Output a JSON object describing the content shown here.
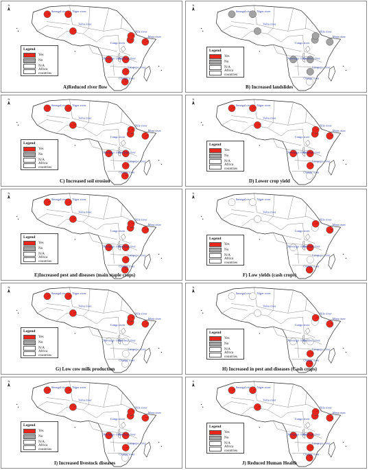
{
  "legend": {
    "title": "Legend",
    "yes": "Yes",
    "no": "No",
    "na": "N/A",
    "countries": "Africa countries"
  },
  "colors": {
    "yes": "#e8261c",
    "no": "#a3a3a3",
    "na": "#ffffff",
    "river": "#2438a8"
  },
  "rivers": [
    "Senegal river",
    "Niger river",
    "Volta river",
    "Congo river",
    "Nile river",
    "Mara river",
    "Okavango river",
    "Zambezi river",
    "Limpopo river",
    "Orange river"
  ],
  "panels": [
    {
      "caption": "A)Reduced  river flow",
      "status": [
        "yes",
        "yes",
        "yes",
        "yes",
        "yes",
        "yes",
        "yes",
        "yes",
        "yes",
        "yes"
      ]
    },
    {
      "caption": "B) Increased landslides",
      "status": [
        "no",
        "no",
        "no",
        "no",
        "no",
        "no",
        "no",
        "no",
        "no",
        "na"
      ]
    },
    {
      "caption": "C) Increased soil erosion",
      "status": [
        "yes",
        "yes",
        "yes",
        "yes",
        "yes",
        "yes",
        "yes",
        "yes",
        "yes",
        "yes"
      ]
    },
    {
      "caption": "D) Lower crop yield",
      "status": [
        "yes",
        "yes",
        "yes",
        "yes",
        "yes",
        "yes",
        "yes",
        "yes",
        "yes",
        "na"
      ]
    },
    {
      "caption": "E)Increased pest and diseases (main staple crops)",
      "status": [
        "yes",
        "yes",
        "yes",
        "yes",
        "yes",
        "yes",
        "yes",
        "yes",
        "yes",
        "yes"
      ]
    },
    {
      "caption": "F) Low yields (cash crops)",
      "status": [
        "na",
        "na",
        "na",
        "na",
        "yes",
        "yes",
        "na",
        "yes",
        "na",
        "yes"
      ]
    },
    {
      "caption": "G) Low cow milk production",
      "status": [
        "yes",
        "yes",
        "yes",
        "yes",
        "yes",
        "yes",
        "na",
        "na",
        "na",
        "na"
      ]
    },
    {
      "caption": "H) Increased in pest and diseases (Cash crops)",
      "status": [
        "na",
        "na",
        "na",
        "na",
        "yes",
        "yes",
        "na",
        "na",
        "yes",
        "yes"
      ]
    },
    {
      "caption": "I) Increased livestock diseases",
      "status": [
        "yes",
        "yes",
        "yes",
        "yes",
        "yes",
        "yes",
        "yes",
        "yes",
        "yes",
        "na"
      ]
    },
    {
      "caption": "J) Reduced Human Health",
      "status": [
        "yes",
        "yes",
        "yes",
        "yes",
        "yes",
        "yes",
        "yes",
        "yes",
        "yes",
        "yes"
      ]
    }
  ]
}
